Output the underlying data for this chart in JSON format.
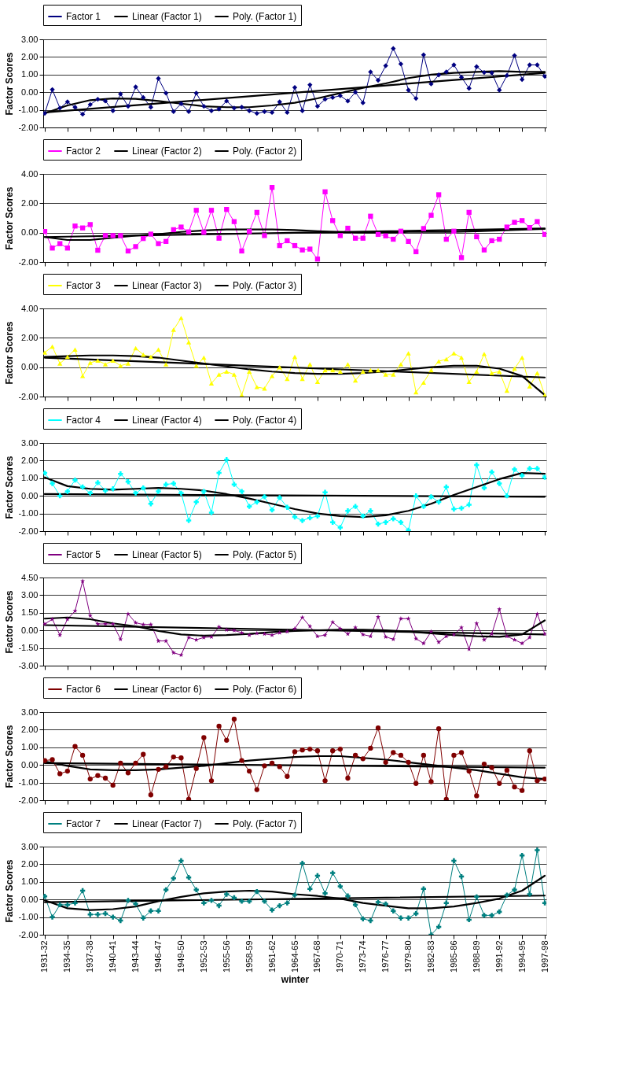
{
  "chart_data": [
    {
      "type": "line",
      "ylabel": "Factor Scores",
      "tick_labels": "y",
      "grid": "y",
      "legend": "top",
      "line_style": "solid",
      "categories": [
        "1931-32",
        null,
        null,
        "1934-35",
        null,
        null,
        "1937-38",
        null,
        null,
        "1940-41",
        null,
        null,
        "1943-44",
        null,
        null,
        "1946-47",
        null,
        null,
        "1949-50",
        null,
        null,
        "1952-53",
        null,
        null,
        "1955-56",
        null,
        null,
        "1958-59",
        null,
        null,
        "1961-62",
        null,
        null,
        "1964-65",
        null,
        null,
        "1967-68",
        null,
        null,
        "1970-71",
        null,
        null,
        "1973-74",
        null,
        null,
        "1976-77",
        null,
        null,
        "1979-80",
        null,
        null,
        "1982-83",
        null,
        null,
        "1985-86",
        null,
        null,
        "1988-89",
        null,
        null,
        "1991-92",
        null,
        null,
        "1994-95",
        null,
        null,
        "1997-98"
      ],
      "ylim": [
        -2,
        3
      ],
      "yticks": [
        {
          "value": -2,
          "label": "-2.00"
        },
        {
          "value": -1,
          "label": "-1.00"
        },
        {
          "value": 0,
          "label": "0.00"
        },
        {
          "value": 1,
          "label": "1.00"
        },
        {
          "value": 2,
          "label": "2.00"
        },
        {
          "value": 3,
          "label": "3.00"
        }
      ],
      "series": [
        {
          "name": "Factor 1",
          "color": "#000080",
          "marker": "diamond",
          "values": [
            -1.2,
            0.15,
            -0.9,
            -0.55,
            -0.85,
            -1.25,
            -0.7,
            -0.4,
            -0.5,
            -1.05,
            -0.1,
            -0.8,
            0.3,
            -0.3,
            -0.85,
            0.78,
            -0.05,
            -1.1,
            -0.65,
            -1.1,
            -0.05,
            -0.8,
            -1.05,
            -0.95,
            -0.5,
            -0.9,
            -0.85,
            -1.05,
            -1.2,
            -1.1,
            -1.15,
            -0.55,
            -1.15,
            0.27,
            -1.05,
            0.42,
            -0.8,
            -0.4,
            -0.3,
            -0.2,
            -0.5,
            0.0,
            -0.6,
            1.15,
            0.68,
            1.5,
            2.48,
            1.6,
            0.12,
            -0.35,
            2.12,
            0.47,
            0.98,
            1.15,
            1.55,
            0.85,
            0.22,
            1.45,
            1.12,
            1.1,
            0.12,
            0.95,
            2.08,
            0.72,
            1.55,
            1.55,
            0.9
          ]
        },
        {
          "name": "Linear (Factor 1)",
          "color": "#000000",
          "marker": "none",
          "x": [
            "1931-32",
            "1997-98"
          ],
          "values": [
            -1.15,
            1.1
          ]
        },
        {
          "name": "Poly. (Factor 1)",
          "color": "#000000",
          "marker": "none",
          "x": [
            "1931-32",
            "1934-35",
            "1937-38",
            "1940-41",
            "1943-44",
            "1946-47",
            "1949-50",
            "1952-53",
            "1955-56",
            "1958-59",
            "1961-62",
            "1964-65",
            "1967-68",
            "1970-71",
            "1973-74",
            "1976-77",
            "1979-80",
            "1982-83",
            "1985-86",
            "1988-89",
            "1991-92",
            "1994-95",
            "1997-98"
          ],
          "values": [
            -1.2,
            -0.75,
            -0.45,
            -0.35,
            -0.38,
            -0.5,
            -0.65,
            -0.8,
            -0.85,
            -0.85,
            -0.75,
            -0.6,
            -0.35,
            -0.05,
            0.25,
            0.5,
            0.8,
            1.0,
            1.1,
            1.15,
            1.2,
            1.15,
            1.15
          ]
        }
      ]
    },
    {
      "type": "line",
      "ylabel": "Factor Scores",
      "tick_labels": "y",
      "grid": "y",
      "legend": "top",
      "line_style": "solid",
      "categories": [
        "1931-32",
        null,
        null,
        "1934-35",
        null,
        null,
        "1937-38",
        null,
        null,
        "1940-41",
        null,
        null,
        "1943-44",
        null,
        null,
        "1946-47",
        null,
        null,
        "1949-50",
        null,
        null,
        "1952-53",
        null,
        null,
        "1955-56",
        null,
        null,
        "1958-59",
        null,
        null,
        "1961-62",
        null,
        null,
        "1964-65",
        null,
        null,
        "1967-68",
        null,
        null,
        "1970-71",
        null,
        null,
        "1973-74",
        null,
        null,
        "1976-77",
        null,
        null,
        "1979-80",
        null,
        null,
        "1982-83",
        null,
        null,
        "1985-86",
        null,
        null,
        "1988-89",
        null,
        null,
        "1991-92",
        null,
        null,
        "1994-95",
        null,
        null,
        "1997-98"
      ],
      "ylim": [
        -2,
        4
      ],
      "yticks": [
        {
          "value": -2,
          "label": "-2.00"
        },
        {
          "value": 0,
          "label": "0.00"
        },
        {
          "value": 2,
          "label": "2.00"
        },
        {
          "value": 4,
          "label": "4.00"
        }
      ],
      "series": [
        {
          "name": "Factor 2",
          "color": "#ff00ff",
          "marker": "square",
          "values": [
            0.08,
            -1.05,
            -0.75,
            -1.05,
            0.45,
            0.32,
            0.55,
            -1.2,
            -0.2,
            -0.2,
            -0.2,
            -1.25,
            -0.95,
            -0.4,
            -0.1,
            -0.75,
            -0.6,
            0.2,
            0.38,
            0.05,
            1.52,
            0.02,
            1.52,
            -0.38,
            1.58,
            0.75,
            -1.25,
            0.08,
            1.38,
            -0.2,
            3.08,
            -0.88,
            -0.55,
            -0.88,
            -1.18,
            -1.12,
            -1.8,
            2.78,
            0.82,
            -0.2,
            0.3,
            -0.38,
            -0.38,
            1.12,
            -0.12,
            -0.22,
            -0.45,
            0.1,
            -0.6,
            -1.3,
            0.28,
            1.18,
            2.58,
            -0.45,
            0.1,
            -1.7,
            1.38,
            -0.28,
            -1.18,
            -0.55,
            -0.45,
            0.38,
            0.7,
            0.82,
            0.35,
            0.75,
            -0.12
          ]
        },
        {
          "name": "Linear (Factor 2)",
          "color": "#000000",
          "marker": "none",
          "x": [
            "1931-32",
            "1997-98"
          ],
          "values": [
            -0.3,
            0.28
          ]
        },
        {
          "name": "Poly. (Factor 2)",
          "color": "#000000",
          "marker": "none",
          "x": [
            "1931-32",
            "1934-35",
            "1937-38",
            "1940-41",
            "1943-44",
            "1946-47",
            "1949-50",
            "1952-53",
            "1955-56",
            "1958-59",
            "1961-62",
            "1964-65",
            "1967-68",
            "1970-71",
            "1973-74",
            "1976-77",
            "1979-80",
            "1982-83",
            "1985-86",
            "1988-89",
            "1991-92",
            "1994-95",
            "1997-98"
          ],
          "values": [
            -0.3,
            -0.5,
            -0.5,
            -0.35,
            -0.2,
            -0.1,
            0.05,
            0.15,
            0.22,
            0.22,
            0.22,
            0.18,
            0.1,
            0.05,
            0.0,
            0.0,
            0.05,
            0.05,
            0.05,
            0.1,
            0.15,
            0.2,
            0.25
          ]
        }
      ]
    },
    {
      "type": "line",
      "ylabel": "Factor Scores",
      "tick_labels": "y",
      "grid": "y",
      "legend": "top",
      "line_style": "solid",
      "categories": [
        "1931-32",
        null,
        null,
        "1934-35",
        null,
        null,
        "1937-38",
        null,
        null,
        "1940-41",
        null,
        null,
        "1943-44",
        null,
        null,
        "1946-47",
        null,
        null,
        "1949-50",
        null,
        null,
        "1952-53",
        null,
        null,
        "1955-56",
        null,
        null,
        "1958-59",
        null,
        null,
        "1961-62",
        null,
        null,
        "1964-65",
        null,
        null,
        "1967-68",
        null,
        null,
        "1970-71",
        null,
        null,
        "1973-74",
        null,
        null,
        "1976-77",
        null,
        null,
        "1979-80",
        null,
        null,
        "1982-83",
        null,
        null,
        "1985-86",
        null,
        null,
        "1988-89",
        null,
        null,
        "1991-92",
        null,
        null,
        "1994-95",
        null,
        null,
        "1997-98"
      ],
      "ylim": [
        -2,
        4
      ],
      "yticks": [
        {
          "value": -2,
          "label": "-2.00"
        },
        {
          "value": 0,
          "label": "0.00"
        },
        {
          "value": 2,
          "label": "2.00"
        },
        {
          "value": 4,
          "label": "4.00"
        }
      ],
      "series": [
        {
          "name": "Factor 3",
          "color": "#ffff00",
          "marker": "triangle",
          "values": [
            1.0,
            1.4,
            0.25,
            0.7,
            1.2,
            -0.6,
            0.3,
            0.45,
            0.2,
            0.45,
            0.1,
            0.25,
            1.3,
            0.85,
            0.7,
            1.2,
            0.2,
            2.55,
            3.35,
            1.7,
            0.1,
            0.65,
            -1.1,
            -0.5,
            -0.3,
            -0.5,
            -1.9,
            -0.3,
            -1.35,
            -1.45,
            -0.6,
            0.0,
            -0.8,
            0.7,
            -0.8,
            0.2,
            -1.0,
            -0.2,
            -0.2,
            -0.3,
            0.2,
            -0.9,
            -0.3,
            -0.2,
            -0.2,
            -0.5,
            -0.5,
            0.2,
            0.95,
            -1.7,
            -1.05,
            -0.2,
            0.4,
            0.55,
            0.95,
            0.65,
            -1.0,
            -0.3,
            0.9,
            -0.4,
            -0.3,
            -1.6,
            -0.1,
            0.65,
            -1.3,
            -0.4,
            -1.9
          ]
        },
        {
          "name": "Linear (Factor 3)",
          "color": "#000000",
          "marker": "none",
          "x": [
            "1931-32",
            "1997-98"
          ],
          "values": [
            0.65,
            -0.7
          ]
        },
        {
          "name": "Poly. (Factor 3)",
          "color": "#000000",
          "marker": "none",
          "x": [
            "1931-32",
            "1934-35",
            "1937-38",
            "1940-41",
            "1943-44",
            "1946-47",
            "1949-50",
            "1952-53",
            "1955-56",
            "1958-59",
            "1961-62",
            "1964-65",
            "1967-68",
            "1970-71",
            "1973-74",
            "1976-77",
            "1979-80",
            "1982-83",
            "1985-86",
            "1988-89",
            "1991-92",
            "1994-95",
            "1997-98"
          ],
          "values": [
            0.7,
            0.75,
            0.8,
            0.8,
            0.75,
            0.65,
            0.45,
            0.25,
            0.05,
            -0.15,
            -0.3,
            -0.4,
            -0.45,
            -0.45,
            -0.4,
            -0.3,
            -0.15,
            0.0,
            0.1,
            0.1,
            -0.1,
            -0.6,
            -1.9
          ]
        }
      ]
    },
    {
      "type": "line",
      "ylabel": "Factor Scores",
      "tick_labels": "y",
      "grid": "y",
      "legend": "top",
      "line_style": "solid",
      "categories": [
        "1931-32",
        null,
        null,
        "1934-35",
        null,
        null,
        "1937-38",
        null,
        null,
        "1940-41",
        null,
        null,
        "1943-44",
        null,
        null,
        "1946-47",
        null,
        null,
        "1949-50",
        null,
        null,
        "1952-53",
        null,
        null,
        "1955-56",
        null,
        null,
        "1958-59",
        null,
        null,
        "1961-62",
        null,
        null,
        "1964-65",
        null,
        null,
        "1967-68",
        null,
        null,
        "1970-71",
        null,
        null,
        "1973-74",
        null,
        null,
        "1976-77",
        null,
        null,
        "1979-80",
        null,
        null,
        "1982-83",
        null,
        null,
        "1985-86",
        null,
        null,
        "1988-89",
        null,
        null,
        "1991-92",
        null,
        null,
        "1994-95",
        null,
        null,
        "1997-98"
      ],
      "ylim": [
        -2,
        3
      ],
      "yticks": [
        {
          "value": -2,
          "label": "-2.00"
        },
        {
          "value": -1,
          "label": "-1.00"
        },
        {
          "value": 0,
          "label": "0.00"
        },
        {
          "value": 1,
          "label": "1.00"
        },
        {
          "value": 2,
          "label": "2.00"
        },
        {
          "value": 3,
          "label": "3.00"
        }
      ],
      "series": [
        {
          "name": "Factor 4",
          "color": "#00ffff",
          "marker": "cross",
          "values": [
            1.3,
            0.7,
            0.0,
            0.25,
            0.9,
            0.5,
            0.15,
            0.75,
            0.3,
            0.4,
            1.25,
            0.8,
            0.15,
            0.45,
            -0.45,
            0.25,
            0.65,
            0.7,
            0.15,
            -1.4,
            -0.35,
            0.25,
            -0.95,
            1.3,
            2.05,
            0.65,
            0.25,
            -0.6,
            -0.35,
            -0.05,
            -0.8,
            -0.1,
            -0.65,
            -1.2,
            -1.4,
            -1.25,
            -1.15,
            0.2,
            -1.5,
            -1.8,
            -0.85,
            -0.6,
            -1.15,
            -0.85,
            -1.6,
            -1.5,
            -1.3,
            -1.5,
            -1.95,
            0.0,
            -0.6,
            -0.05,
            -0.35,
            0.5,
            -0.75,
            -0.7,
            -0.5,
            1.75,
            0.45,
            1.35,
            0.7,
            0.0,
            1.5,
            1.15,
            1.55,
            1.55,
            1.05
          ]
        },
        {
          "name": "Linear (Factor 4)",
          "color": "#000000",
          "marker": "none",
          "x": [
            "1931-32",
            "1997-98"
          ],
          "values": [
            0.1,
            -0.05
          ]
        },
        {
          "name": "Poly. (Factor 4)",
          "color": "#000000",
          "marker": "none",
          "x": [
            "1931-32",
            "1934-35",
            "1937-38",
            "1940-41",
            "1943-44",
            "1946-47",
            "1949-50",
            "1952-53",
            "1955-56",
            "1958-59",
            "1961-62",
            "1964-65",
            "1967-68",
            "1970-71",
            "1973-74",
            "1976-77",
            "1979-80",
            "1982-83",
            "1985-86",
            "1988-89",
            "1991-92",
            "1994-95",
            "1997-98"
          ],
          "values": [
            1.05,
            0.55,
            0.4,
            0.35,
            0.4,
            0.45,
            0.4,
            0.3,
            0.1,
            -0.15,
            -0.45,
            -0.75,
            -1.0,
            -1.15,
            -1.2,
            -1.1,
            -0.85,
            -0.45,
            0.05,
            0.5,
            0.95,
            1.3,
            1.25
          ]
        }
      ]
    },
    {
      "type": "line",
      "ylabel": "Factor Scores",
      "tick_labels": "y",
      "grid": "y",
      "legend": "top",
      "line_style": "solid",
      "categories": [
        "1931-32",
        null,
        null,
        "1934-35",
        null,
        null,
        "1937-38",
        null,
        null,
        "1940-41",
        null,
        null,
        "1943-44",
        null,
        null,
        "1946-47",
        null,
        null,
        "1949-50",
        null,
        null,
        "1952-53",
        null,
        null,
        "1955-56",
        null,
        null,
        "1958-59",
        null,
        null,
        "1961-62",
        null,
        null,
        "1964-65",
        null,
        null,
        "1967-68",
        null,
        null,
        "1970-71",
        null,
        null,
        "1973-74",
        null,
        null,
        "1976-77",
        null,
        null,
        "1979-80",
        null,
        null,
        "1982-83",
        null,
        null,
        "1985-86",
        null,
        null,
        "1988-89",
        null,
        null,
        "1991-92",
        null,
        null,
        "1994-95",
        null,
        null,
        "1997-98"
      ],
      "ylim": [
        -3,
        4.5
      ],
      "yticks": [
        {
          "value": -3,
          "label": "-3.00"
        },
        {
          "value": -1.5,
          "label": "-1.50"
        },
        {
          "value": 0,
          "label": "0.00"
        },
        {
          "value": 1.5,
          "label": "1.50"
        },
        {
          "value": 3,
          "label": "3.00"
        },
        {
          "value": 4.5,
          "label": "4.50"
        }
      ],
      "series": [
        {
          "name": "Factor 5",
          "color": "#800080",
          "marker": "star",
          "values": [
            0.55,
            0.95,
            -0.4,
            0.95,
            1.65,
            4.2,
            1.25,
            0.55,
            0.55,
            0.55,
            -0.75,
            1.4,
            0.65,
            0.5,
            0.5,
            -0.9,
            -0.9,
            -1.9,
            -2.1,
            -0.6,
            -0.8,
            -0.6,
            -0.55,
            0.3,
            0.05,
            0.0,
            -0.2,
            -0.4,
            -0.25,
            -0.3,
            -0.4,
            -0.2,
            -0.1,
            0.15,
            1.1,
            0.35,
            -0.5,
            -0.4,
            0.7,
            0.15,
            -0.3,
            0.25,
            -0.35,
            -0.5,
            1.15,
            -0.55,
            -0.75,
            1.0,
            1.0,
            -0.7,
            -1.1,
            -0.1,
            -1.0,
            -0.5,
            -0.35,
            0.25,
            -1.6,
            0.6,
            -0.8,
            -0.3,
            1.8,
            -0.5,
            -0.8,
            -1.1,
            -0.6,
            1.4,
            -0.3
          ]
        },
        {
          "name": "Linear (Factor 5)",
          "color": "#000000",
          "marker": "none",
          "x": [
            "1931-32",
            "1997-98"
          ],
          "values": [
            0.45,
            -0.35
          ]
        },
        {
          "name": "Poly. (Factor 5)",
          "color": "#000000",
          "marker": "none",
          "x": [
            "1931-32",
            "1934-35",
            "1937-38",
            "1940-41",
            "1943-44",
            "1946-47",
            "1949-50",
            "1952-53",
            "1955-56",
            "1958-59",
            "1961-62",
            "1964-65",
            "1967-68",
            "1970-71",
            "1973-74",
            "1976-77",
            "1979-80",
            "1982-83",
            "1985-86",
            "1988-89",
            "1991-92",
            "1994-95",
            "1997-98"
          ],
          "values": [
            1.0,
            1.1,
            0.95,
            0.6,
            0.35,
            -0.05,
            -0.35,
            -0.45,
            -0.4,
            -0.3,
            -0.15,
            -0.05,
            0.0,
            0.05,
            0.05,
            0.0,
            -0.1,
            -0.25,
            -0.4,
            -0.5,
            -0.55,
            -0.35,
            0.85
          ]
        }
      ]
    },
    {
      "type": "line",
      "ylabel": "Factor Scores",
      "tick_labels": "y",
      "grid": "y",
      "legend": "top",
      "line_style": "solid",
      "categories": [
        "1931-32",
        null,
        null,
        "1934-35",
        null,
        null,
        "1937-38",
        null,
        null,
        "1940-41",
        null,
        null,
        "1943-44",
        null,
        null,
        "1946-47",
        null,
        null,
        "1949-50",
        null,
        null,
        "1952-53",
        null,
        null,
        "1955-56",
        null,
        null,
        "1958-59",
        null,
        null,
        "1961-62",
        null,
        null,
        "1964-65",
        null,
        null,
        "1967-68",
        null,
        null,
        "1970-71",
        null,
        null,
        "1973-74",
        null,
        null,
        "1976-77",
        null,
        null,
        "1979-80",
        null,
        null,
        "1982-83",
        null,
        null,
        "1985-86",
        null,
        null,
        "1988-89",
        null,
        null,
        "1991-92",
        null,
        null,
        "1994-95",
        null,
        null,
        "1997-98"
      ],
      "ylim": [
        -2,
        3
      ],
      "yticks": [
        {
          "value": -2,
          "label": "-2.00"
        },
        {
          "value": -1,
          "label": "-1.00"
        },
        {
          "value": 0,
          "label": "0.00"
        },
        {
          "value": 1,
          "label": "1.00"
        },
        {
          "value": 2,
          "label": "2.00"
        },
        {
          "value": 3,
          "label": "3.00"
        }
      ],
      "series": [
        {
          "name": "Factor 6",
          "color": "#800000",
          "marker": "circle",
          "values": [
            0.25,
            0.3,
            -0.5,
            -0.35,
            1.05,
            0.55,
            -0.8,
            -0.6,
            -0.75,
            -1.15,
            0.1,
            -0.45,
            0.1,
            0.6,
            -1.7,
            -0.25,
            -0.1,
            0.45,
            0.4,
            -1.95,
            -0.2,
            1.55,
            -0.9,
            2.2,
            1.4,
            2.6,
            0.25,
            -0.35,
            -1.4,
            -0.05,
            0.1,
            -0.1,
            -0.65,
            0.75,
            0.85,
            0.9,
            0.8,
            -0.9,
            0.8,
            0.9,
            -0.75,
            0.55,
            0.35,
            0.95,
            2.1,
            0.15,
            0.7,
            0.55,
            0.15,
            -1.05,
            0.55,
            -0.95,
            2.05,
            -1.95,
            0.55,
            0.7,
            -0.35,
            -1.75,
            0.05,
            -0.15,
            -1.05,
            -0.3,
            -1.25,
            -1.45,
            0.8,
            -0.9,
            -0.8
          ]
        },
        {
          "name": "Linear (Factor 6)",
          "color": "#000000",
          "marker": "none",
          "x": [
            "1931-32",
            "1997-98"
          ],
          "values": [
            0.1,
            -0.15
          ]
        },
        {
          "name": "Poly. (Factor 6)",
          "color": "#000000",
          "marker": "none",
          "x": [
            "1931-32",
            "1934-35",
            "1937-38",
            "1940-41",
            "1943-44",
            "1946-47",
            "1949-50",
            "1952-53",
            "1955-56",
            "1958-59",
            "1961-62",
            "1964-65",
            "1967-68",
            "1970-71",
            "1973-74",
            "1976-77",
            "1979-80",
            "1982-83",
            "1985-86",
            "1988-89",
            "1991-92",
            "1994-95",
            "1997-98"
          ],
          "values": [
            0.2,
            -0.05,
            -0.25,
            -0.3,
            -0.3,
            -0.25,
            -0.15,
            -0.05,
            0.1,
            0.25,
            0.35,
            0.45,
            0.5,
            0.5,
            0.4,
            0.3,
            0.15,
            0.0,
            -0.15,
            -0.3,
            -0.5,
            -0.7,
            -0.8
          ]
        }
      ]
    },
    {
      "type": "line",
      "ylabel": "Factor Scores",
      "xlabel": "winter",
      "grid": "y",
      "legend": "top",
      "line_style": "solid",
      "categories": [
        "1931-32",
        null,
        null,
        "1934-35",
        null,
        null,
        "1937-38",
        null,
        null,
        "1940-41",
        null,
        null,
        "1943-44",
        null,
        null,
        "1946-47",
        null,
        null,
        "1949-50",
        null,
        null,
        "1952-53",
        null,
        null,
        "1955-56",
        null,
        null,
        "1958-59",
        null,
        null,
        "1961-62",
        null,
        null,
        "1964-65",
        null,
        null,
        "1967-68",
        null,
        null,
        "1970-71",
        null,
        null,
        "1973-74",
        null,
        null,
        "1976-77",
        null,
        null,
        "1979-80",
        null,
        null,
        "1982-83",
        null,
        null,
        "1985-86",
        null,
        null,
        "1988-89",
        null,
        null,
        "1991-92",
        null,
        null,
        "1994-95",
        null,
        null,
        "1997-98"
      ],
      "ylim": [
        -2,
        3
      ],
      "yticks": [
        {
          "value": -2,
          "label": "-2.00"
        },
        {
          "value": -1,
          "label": "-1.00"
        },
        {
          "value": 0,
          "label": "0.00"
        },
        {
          "value": 1,
          "label": "1.00"
        },
        {
          "value": 2,
          "label": "2.00"
        },
        {
          "value": 3,
          "label": "3.00"
        }
      ],
      "series": [
        {
          "name": "Factor 7",
          "color": "#008080",
          "marker": "cross",
          "values": [
            0.18,
            -1.0,
            -0.3,
            -0.3,
            -0.2,
            0.5,
            -0.85,
            -0.85,
            -0.8,
            -1.0,
            -1.2,
            -0.05,
            -0.25,
            -1.05,
            -0.65,
            -0.65,
            0.55,
            1.2,
            2.2,
            1.25,
            0.55,
            -0.2,
            -0.05,
            -0.35,
            0.3,
            0.1,
            -0.1,
            -0.1,
            0.45,
            -0.1,
            -0.6,
            -0.35,
            -0.2,
            0.25,
            2.05,
            0.6,
            1.35,
            0.35,
            1.5,
            0.75,
            0.2,
            -0.3,
            -1.1,
            -1.2,
            -0.15,
            -0.25,
            -0.65,
            -1.05,
            -1.05,
            -0.8,
            0.6,
            -2.0,
            -1.55,
            -0.2,
            2.2,
            1.3,
            -1.15,
            0.15,
            -0.9,
            -0.9,
            -0.7,
            0.25,
            0.55,
            2.5,
            0.3,
            2.8,
            -0.2
          ]
        },
        {
          "name": "Linear (Factor 7)",
          "color": "#000000",
          "marker": "none",
          "x": [
            "1931-32",
            "1997-98"
          ],
          "values": [
            -0.15,
            0.22
          ]
        },
        {
          "name": "Poly. (Factor 7)",
          "color": "#000000",
          "marker": "none",
          "x": [
            "1931-32",
            "1934-35",
            "1937-38",
            "1940-41",
            "1943-44",
            "1946-47",
            "1949-50",
            "1952-53",
            "1955-56",
            "1958-59",
            "1961-62",
            "1964-65",
            "1967-68",
            "1970-71",
            "1973-74",
            "1976-77",
            "1979-80",
            "1982-83",
            "1985-86",
            "1988-89",
            "1991-92",
            "1994-95",
            "1997-98"
          ],
          "values": [
            -0.05,
            -0.5,
            -0.6,
            -0.55,
            -0.4,
            -0.1,
            0.15,
            0.35,
            0.45,
            0.5,
            0.45,
            0.3,
            0.2,
            0.05,
            -0.2,
            -0.35,
            -0.5,
            -0.5,
            -0.4,
            -0.2,
            0.05,
            0.5,
            1.35
          ]
        }
      ]
    }
  ]
}
